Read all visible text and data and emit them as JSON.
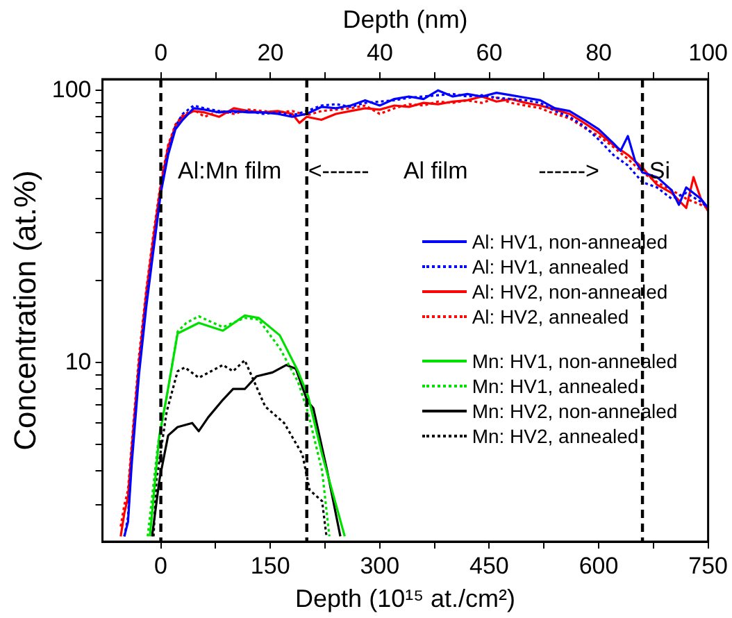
{
  "chart_data": {
    "type": "line",
    "xlabel": "Depth (10¹⁵ at./cm²)",
    "ylabel": "Concentration (at.%)",
    "x2label": "Depth (nm)",
    "xlim": [
      -80,
      750
    ],
    "xticks": [
      0,
      {
        "value": 75,
        "label": null
      },
      150,
      {
        "value": 225,
        "label": null
      },
      300,
      {
        "value": 375,
        "label": null
      },
      450,
      {
        "value": 525,
        "label": null
      },
      600,
      {
        "value": 675,
        "label": null
      },
      750
    ],
    "x2lim": [
      -10.7,
      100
    ],
    "x2ticks": [
      0,
      {
        "value": 10,
        "label": null
      },
      20,
      {
        "value": 30,
        "label": null
      },
      40,
      {
        "value": 50,
        "label": null
      },
      60,
      {
        "value": 70,
        "label": null
      },
      80,
      {
        "value": 90,
        "label": null
      },
      100
    ],
    "ylim": [
      2.2,
      110
    ],
    "log": "y",
    "yticks": [
      {
        "value": 3,
        "label": null
      },
      {
        "value": 4,
        "label": null
      },
      {
        "value": 5,
        "label": null
      },
      {
        "value": 6,
        "label": null
      },
      {
        "value": 7,
        "label": null
      },
      {
        "value": 8,
        "label": null
      },
      {
        "value": 9,
        "label": null
      },
      10,
      {
        "value": 20,
        "label": null
      },
      {
        "value": 30,
        "label": null
      },
      {
        "value": 40,
        "label": null
      },
      {
        "value": 50,
        "label": null
      },
      {
        "value": 60,
        "label": null
      },
      {
        "value": 70,
        "label": null
      },
      {
        "value": 80,
        "label": null
      },
      {
        "value": 90,
        "label": null
      },
      100
    ],
    "grid": false,
    "legend": "right",
    "marker": "none",
    "series": [
      {
        "name": "Al: HV1, non-annealed",
        "color": "#0000ff",
        "line_style": "solid",
        "x": [
          -50,
          -45,
          -40,
          -30,
          -20,
          -10,
          0,
          10,
          20,
          30,
          45,
          60,
          80,
          100,
          120,
          140,
          160,
          180,
          200,
          220,
          240,
          260,
          280,
          300,
          320,
          340,
          360,
          380,
          400,
          420,
          440,
          460,
          480,
          500,
          520,
          540,
          560,
          580,
          600,
          620,
          630,
          640,
          650,
          660,
          680,
          700,
          710,
          720,
          740,
          750
        ],
        "values": [
          2.3,
          2.6,
          4.2,
          9,
          16,
          26,
          42,
          58,
          72,
          78,
          86,
          85,
          83,
          84,
          83,
          83,
          82,
          80,
          82,
          87,
          86,
          88,
          92,
          88,
          93,
          95,
          93,
          100,
          95,
          97,
          95,
          98,
          96,
          94,
          92,
          86,
          84,
          78,
          72,
          64,
          60,
          68,
          55,
          50,
          48,
          43,
          38,
          44,
          40,
          37
        ]
      },
      {
        "name": "Al: HV1, annealed",
        "color": "#0000ff",
        "line_style": "dotted",
        "x": [
          -50,
          -45,
          -40,
          -30,
          -20,
          -10,
          0,
          10,
          20,
          30,
          45,
          60,
          80,
          100,
          120,
          140,
          160,
          180,
          200,
          220,
          240,
          260,
          280,
          300,
          320,
          340,
          360,
          380,
          400,
          420,
          440,
          460,
          480,
          500,
          520,
          540,
          560,
          580,
          600,
          620,
          640,
          660,
          680,
          700,
          720,
          740,
          750
        ],
        "values": [
          2.3,
          2.7,
          4.5,
          9.5,
          17,
          27,
          43,
          60,
          74,
          82,
          88,
          86,
          84,
          83,
          84,
          82,
          83,
          81,
          84,
          88,
          89,
          87,
          90,
          91,
          92,
          94,
          95,
          96,
          97,
          95,
          96,
          94,
          93,
          92,
          90,
          84,
          80,
          74,
          66,
          58,
          53,
          46,
          44,
          40,
          42,
          39,
          37
        ]
      },
      {
        "name": "Al: HV2, non-annealed",
        "color": "#ff0000",
        "line_style": "solid",
        "x": [
          -55,
          -50,
          -45,
          -40,
          -30,
          -20,
          -10,
          0,
          10,
          20,
          30,
          45,
          60,
          80,
          100,
          120,
          140,
          160,
          180,
          190,
          200,
          220,
          240,
          260,
          280,
          300,
          320,
          340,
          360,
          380,
          400,
          420,
          440,
          460,
          480,
          500,
          520,
          540,
          560,
          580,
          600,
          620,
          640,
          660,
          680,
          700,
          720,
          730,
          740,
          750
        ],
        "values": [
          2.3,
          2.8,
          3.2,
          4.8,
          10,
          18,
          29,
          45,
          62,
          74,
          80,
          84,
          83,
          80,
          86,
          84,
          83,
          84,
          82,
          76,
          80,
          78,
          82,
          84,
          86,
          85,
          88,
          87,
          90,
          89,
          91,
          92,
          95,
          91,
          93,
          90,
          88,
          85,
          82,
          76,
          70,
          63,
          58,
          52,
          45,
          42,
          37,
          48,
          40,
          36
        ]
      },
      {
        "name": "Al: HV2, annealed",
        "color": "#ff0000",
        "line_style": "dotted",
        "x": [
          -55,
          -50,
          -45,
          -40,
          -30,
          -20,
          -10,
          0,
          10,
          20,
          30,
          45,
          60,
          80,
          100,
          120,
          140,
          160,
          180,
          200,
          220,
          240,
          260,
          280,
          300,
          320,
          340,
          360,
          380,
          400,
          420,
          440,
          460,
          480,
          500,
          520,
          540,
          560,
          580,
          600,
          620,
          640,
          660,
          680,
          700,
          720,
          740,
          750
        ],
        "values": [
          2.5,
          3,
          3.4,
          5,
          10.5,
          18.5,
          30,
          46,
          63,
          75,
          81,
          85,
          80,
          84,
          82,
          85,
          84,
          83,
          84,
          81,
          84,
          85,
          86,
          88,
          82,
          86,
          89,
          88,
          91,
          90,
          92,
          90,
          94,
          90,
          88,
          86,
          82,
          79,
          73,
          68,
          62,
          56,
          50,
          46,
          43,
          40,
          38,
          37
        ]
      },
      {
        "name": "Mn: HV1, non-annealed",
        "color": "#00e000",
        "line_style": "solid",
        "x": [
          -15,
          -2,
          8,
          23,
          52,
          85,
          115,
          134,
          163,
          188,
          202,
          221,
          252
        ],
        "values": [
          2.3,
          5.4,
          7.5,
          12.8,
          14,
          13.1,
          14.9,
          14.6,
          12.6,
          9.3,
          7.5,
          4.6,
          2.3
        ]
      },
      {
        "name": "Mn: HV1, annealed",
        "color": "#00e000",
        "line_style": "dotted",
        "x": [
          -18,
          -4,
          10,
          23,
          35,
          52,
          85,
          115,
          134,
          163,
          188,
          202,
          221,
          231
        ],
        "values": [
          2.3,
          5,
          8,
          13,
          14,
          14.8,
          13.5,
          14.6,
          14.4,
          11.3,
          8.5,
          6.5,
          4,
          2.3
        ]
      },
      {
        "name": "Mn: HV2, non-annealed",
        "color": "#000000",
        "line_style": "solid",
        "x": [
          -12,
          -2,
          10,
          23,
          43,
          52,
          65,
          85,
          99,
          115,
          131,
          153,
          172,
          185,
          201,
          209,
          228,
          246
        ],
        "values": [
          2.3,
          3.7,
          5.4,
          5.8,
          6,
          5.6,
          6.3,
          7.3,
          8,
          8,
          8.9,
          9.2,
          9.8,
          9.5,
          7.2,
          6.8,
          4,
          2.3
        ]
      },
      {
        "name": "Mn: HV2, annealed",
        "color": "#000000",
        "line_style": "dotted",
        "x": [
          -10,
          -6,
          8,
          23,
          33,
          52,
          85,
          99,
          115,
          143,
          169,
          194,
          204,
          221,
          227
        ],
        "values": [
          2.3,
          3.7,
          6.6,
          9.3,
          9.6,
          8.8,
          9.8,
          9.3,
          10.2,
          6.9,
          6,
          4.6,
          3.4,
          3.1,
          2.3
        ]
      }
    ],
    "ref_lines": [
      {
        "axis": "x",
        "value": 0,
        "color": "#000000",
        "line_style": "dashed"
      },
      {
        "axis": "x",
        "value": 200,
        "color": "#000000",
        "line_style": "dashed"
      },
      {
        "axis": "x",
        "value": 660,
        "color": "#000000",
        "line_style": "dashed"
      }
    ],
    "annotations": [
      "Al:Mn film",
      "<------",
      "Al film",
      "------>",
      "Si"
    ]
  }
}
